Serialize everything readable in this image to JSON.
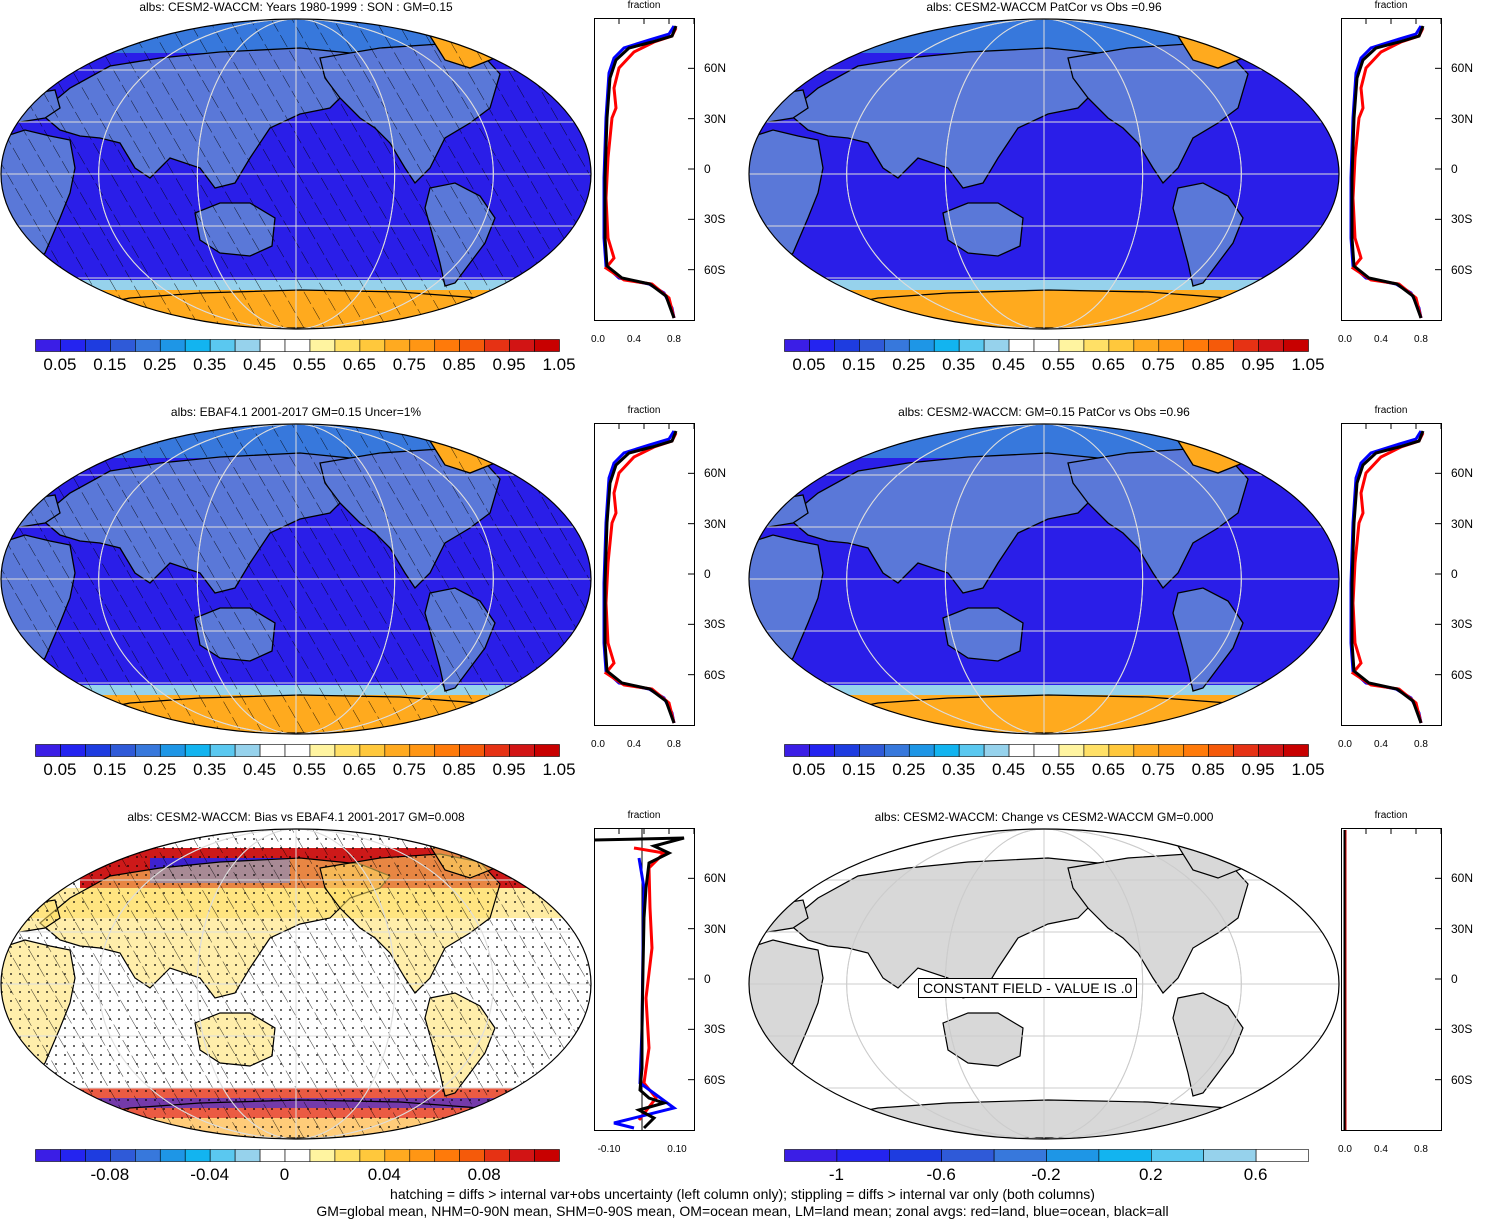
{
  "panels": [
    {
      "id": "p1",
      "title": "albs: CESM2-WACCM: Years 1980-1999 : SON : GM=0.15",
      "style": "abs",
      "hatch": true,
      "stipple": false,
      "colorbar": {
        "labels": [
          "0.05",
          "0.15",
          "0.25",
          "0.35",
          "0.45",
          "0.55",
          "0.65",
          "0.75",
          "0.85",
          "0.95",
          "1.05"
        ]
      },
      "zonal": {
        "xlabel": "fraction",
        "xticks": [
          "0.0",
          "0.4",
          "0.8"
        ],
        "lat_labels": [
          "60N",
          "30N",
          "0",
          "30S",
          "60S"
        ]
      }
    },
    {
      "id": "p2",
      "title": "albs: CESM2-WACCM PatCor vs Obs =0.96",
      "style": "abs",
      "hatch": false,
      "stipple": false,
      "colorbar": {
        "labels": [
          "0.05",
          "0.15",
          "0.25",
          "0.35",
          "0.45",
          "0.55",
          "0.65",
          "0.75",
          "0.85",
          "0.95",
          "1.05"
        ]
      },
      "zonal": {
        "xlabel": "fraction",
        "xticks": [
          "0.0",
          "0.4",
          "0.8"
        ],
        "lat_labels": [
          "60N",
          "30N",
          "0",
          "30S",
          "60S"
        ]
      }
    },
    {
      "id": "p3",
      "title": "albs: EBAF4.1 2001-2017 GM=0.15 Uncer=1%",
      "style": "abs",
      "hatch": true,
      "stipple": false,
      "colorbar": {
        "labels": [
          "0.05",
          "0.15",
          "0.25",
          "0.35",
          "0.45",
          "0.55",
          "0.65",
          "0.75",
          "0.85",
          "0.95",
          "1.05"
        ]
      },
      "zonal": {
        "xlabel": "fraction",
        "xticks": [
          "0.0",
          "0.4",
          "0.8"
        ],
        "lat_labels": [
          "60N",
          "30N",
          "0",
          "30S",
          "60S"
        ]
      }
    },
    {
      "id": "p4",
      "title": "albs: CESM2-WACCM: GM=0.15 PatCor vs Obs =0.96",
      "style": "abs",
      "hatch": false,
      "stipple": false,
      "colorbar": {
        "labels": [
          "0.05",
          "0.15",
          "0.25",
          "0.35",
          "0.45",
          "0.55",
          "0.65",
          "0.75",
          "0.85",
          "0.95",
          "1.05"
        ]
      },
      "zonal": {
        "xlabel": "fraction",
        "xticks": [
          "0.0",
          "0.4",
          "0.8"
        ],
        "lat_labels": [
          "60N",
          "30N",
          "0",
          "30S",
          "60S"
        ]
      }
    },
    {
      "id": "p5",
      "title": "albs: CESM2-WACCM: Bias vs EBAF4.1 2001-2017  GM=0.008",
      "style": "bias",
      "hatch": true,
      "stipple": true,
      "colorbar": {
        "labels": [
          "-0.08",
          "-0.04",
          "0",
          "0.04",
          "0.08"
        ]
      },
      "zonal": {
        "xlabel": "fraction",
        "xticks": [
          "-0.10",
          "0.10"
        ],
        "lat_labels": [
          "60N",
          "30N",
          "0",
          "30S",
          "60S"
        ]
      }
    },
    {
      "id": "p6",
      "title": "albs: CESM2-WACCM: Change vs CESM2-WACCM GM=0.000",
      "style": "constant",
      "hatch": false,
      "stipple": false,
      "constant_text": "CONSTANT FIELD - VALUE IS .0",
      "colorbar": {
        "labels": [
          "-1",
          "-0.6",
          "-0.2",
          "0.2",
          "0.6"
        ]
      },
      "zonal": {
        "xlabel": "fraction",
        "xticks": [
          "0.0",
          "0.4",
          "0.8"
        ],
        "lat_labels": [
          "60N",
          "30N",
          "0",
          "30S",
          "60S"
        ]
      }
    }
  ],
  "colors": {
    "abs_levels": [
      "#3b1ee6",
      "#2424f0",
      "#1e3ce0",
      "#2f5ad8",
      "#3778dc",
      "#1e96e6",
      "#12b4f0",
      "#5ac8f0",
      "#96d2ec",
      "#ffffff",
      "#ffffff",
      "#fff4a0",
      "#ffe066",
      "#ffc83c",
      "#ffaa20",
      "#ff9614",
      "#ff7a0a",
      "#f55a0a",
      "#e63214",
      "#d21414",
      "#c80000"
    ],
    "bias_levels": [
      "#3b1ee6",
      "#2424f0",
      "#1e3ce0",
      "#2f5ad8",
      "#3778dc",
      "#1e96e6",
      "#12b4f0",
      "#5ac8f0",
      "#96d2ec",
      "#ffffff",
      "#ffffff",
      "#fff4a0",
      "#ffe066",
      "#ffc83c",
      "#ffaa20",
      "#ff9614",
      "#ff7a0a",
      "#f55a0a",
      "#e63214",
      "#d21414",
      "#c80000"
    ],
    "diff_levels": [
      "#3b1ee6",
      "#2424f0",
      "#1e3ce0",
      "#2f5ad8",
      "#3778dc",
      "#1e96e6",
      "#12b4f0",
      "#5ac8f0",
      "#96d2ec",
      "#ffffff"
    ],
    "ocean": "#2a1ee8",
    "land": "#5a78d8",
    "ice": "#ffaa1e",
    "land_zonal": "#ff0000",
    "ocean_zonal": "#0000ff",
    "all_zonal": "#000000",
    "constant_land": "#d8d8d8"
  },
  "footer": {
    "line1": "hatching = diffs > internal var+obs uncertainty (left column only); stippling = diffs > internal var only (both columns)",
    "line2": "GM=global mean, NHM=0-90N mean, SHM=0-90S mean, OM=ocean mean, LM=land mean; zonal avgs: red=land, blue=ocean, black=all"
  }
}
